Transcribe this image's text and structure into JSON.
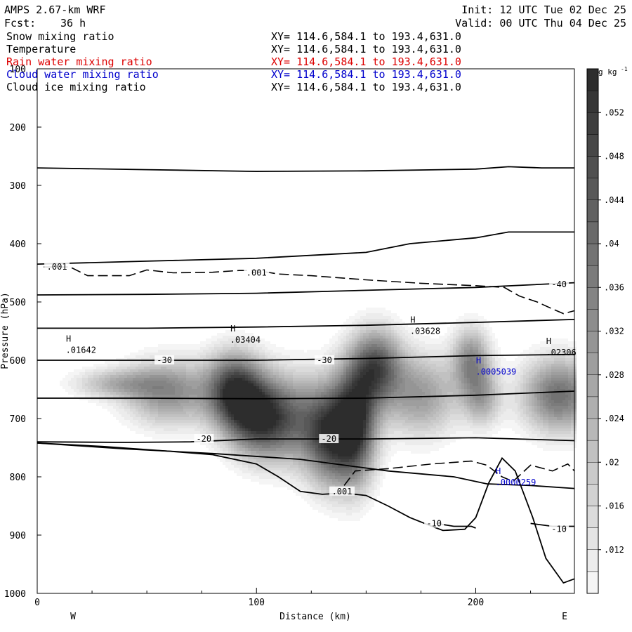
{
  "header": {
    "model": "AMPS 2.67-km WRF",
    "init": "Init: 12 UTC Tue 02 Dec 25",
    "fcst_label": "Fcst:",
    "fcst_value": "36 h",
    "valid": "Valid: 00 UTC Thu 04 Dec 25"
  },
  "legend_rows": [
    {
      "label": "Snow mixing ratio",
      "xy": "XY= 114.6,584.1 to 193.4,631.0",
      "color": "#000000"
    },
    {
      "label": "Temperature",
      "xy": "XY= 114.6,584.1 to 193.4,631.0",
      "color": "#000000"
    },
    {
      "label": "Rain water mixing ratio",
      "xy": "XY= 114.6,584.1 to 193.4,631.0",
      "color": "#dd0000"
    },
    {
      "label": "Cloud water mixing ratio",
      "xy": "XY= 114.6,584.1 to 193.4,631.0",
      "color": "#0000cc"
    },
    {
      "label": "Cloud ice mixing ratio",
      "xy": "XY= 114.6,584.1 to 193.4,631.0",
      "color": "#000000"
    }
  ],
  "chart_data": {
    "type": "cross-section contour",
    "title": "AMPS 2.67-km WRF",
    "xlabel": "Distance (km)",
    "ylabel": "Pressure (hPa)",
    "xlim": [
      0,
      245
    ],
    "ylim": [
      1000,
      100
    ],
    "x_ticks": [
      0,
      100,
      200
    ],
    "y_ticks": [
      100,
      200,
      300,
      400,
      500,
      600,
      700,
      800,
      900,
      1000
    ],
    "x_end_labels": {
      "left": "W",
      "right": "E"
    },
    "colorbar": {
      "unit": "g kg",
      "unit_exp": "-1",
      "tick_labels": [
        ".052",
        ".048",
        ".044",
        ".04",
        ".036",
        ".032",
        ".028",
        ".024",
        ".02",
        ".016",
        ".012"
      ],
      "tick_values": [
        0.052,
        0.048,
        0.044,
        0.04,
        0.036,
        0.032,
        0.028,
        0.024,
        0.02,
        0.016,
        0.012
      ],
      "range": [
        0.008,
        0.056
      ],
      "levels": [
        0.008,
        0.01,
        0.012,
        0.014,
        0.016,
        0.018,
        0.02,
        0.022,
        0.024,
        0.026,
        0.028,
        0.03,
        0.032,
        0.034,
        0.036,
        0.038,
        0.04,
        0.042,
        0.044,
        0.046,
        0.048,
        0.05,
        0.052,
        0.054,
        0.056
      ]
    },
    "shading_field": "Snow mixing ratio (g kg-1)",
    "shading_blobs": [
      {
        "x": 36,
        "p": 640,
        "sx": 14,
        "sp": 18,
        "amp": 0.35
      },
      {
        "x": 60,
        "p": 655,
        "sx": 14,
        "sp": 40,
        "amp": 0.55
      },
      {
        "x": 90,
        "p": 650,
        "sx": 9,
        "sp": 45,
        "amp": 0.85
      },
      {
        "x": 100,
        "p": 700,
        "sx": 10,
        "sp": 45,
        "amp": 0.7
      },
      {
        "x": 115,
        "p": 700,
        "sx": 12,
        "sp": 55,
        "amp": 0.55
      },
      {
        "x": 133,
        "p": 730,
        "sx": 8,
        "sp": 60,
        "amp": 0.75
      },
      {
        "x": 145,
        "p": 710,
        "sx": 7,
        "sp": 70,
        "amp": 0.95
      },
      {
        "x": 155,
        "p": 610,
        "sx": 8,
        "sp": 45,
        "amp": 0.75
      },
      {
        "x": 175,
        "p": 660,
        "sx": 12,
        "sp": 50,
        "amp": 0.5
      },
      {
        "x": 198,
        "p": 600,
        "sx": 6,
        "sp": 40,
        "amp": 0.55
      },
      {
        "x": 203,
        "p": 665,
        "sx": 6,
        "sp": 35,
        "amp": 0.4
      },
      {
        "x": 238,
        "p": 660,
        "sx": 12,
        "sp": 45,
        "amp": 0.7
      }
    ],
    "isotherms": [
      {
        "label": "-10",
        "label_at": [
          {
            "x": 181,
            "p": 880
          },
          {
            "x": 238,
            "p": 890
          }
        ],
        "points": [
          [
            182,
            880
          ],
          [
            190,
            885
          ],
          [
            198,
            885
          ],
          [
            200,
            888
          ]
        ],
        "points2": [
          [
            225,
            880
          ],
          [
            235,
            885
          ],
          [
            245,
            885
          ]
        ]
      },
      {
        "label": "-20",
        "label_at": [
          {
            "x": 76,
            "p": 735
          },
          {
            "x": 133,
            "p": 735
          }
        ],
        "points": [
          [
            0,
            740
          ],
          [
            40,
            741
          ],
          [
            70,
            740
          ],
          [
            100,
            735
          ],
          [
            150,
            735
          ],
          [
            200,
            733
          ],
          [
            245,
            738
          ]
        ]
      },
      {
        "label": "-30",
        "label_at": [
          {
            "x": 58,
            "p": 600
          },
          {
            "x": 131,
            "p": 600
          }
        ],
        "points": [
          [
            0,
            600
          ],
          [
            50,
            600
          ],
          [
            100,
            600
          ],
          [
            150,
            597
          ],
          [
            200,
            592
          ],
          [
            245,
            590
          ]
        ]
      },
      {
        "label": "-40",
        "label_at": [
          {
            "x": 238,
            "p": 470
          }
        ],
        "points": [
          [
            0,
            488
          ],
          [
            50,
            487
          ],
          [
            100,
            485
          ],
          [
            150,
            480
          ],
          [
            200,
            475
          ],
          [
            245,
            467
          ]
        ]
      },
      {
        "label": "",
        "label_at": [],
        "points": [
          [
            0,
            665
          ],
          [
            50,
            665
          ],
          [
            100,
            666
          ],
          [
            150,
            665
          ],
          [
            200,
            660
          ],
          [
            245,
            653
          ]
        ]
      },
      {
        "label": "",
        "label_at": [],
        "points": [
          [
            0,
            545
          ],
          [
            50,
            545
          ],
          [
            100,
            543
          ],
          [
            150,
            540
          ],
          [
            200,
            535
          ],
          [
            245,
            530
          ]
        ]
      },
      {
        "label": "",
        "label_at": [],
        "points": [
          [
            0,
            435
          ],
          [
            50,
            430
          ],
          [
            100,
            425
          ],
          [
            150,
            415
          ],
          [
            170,
            400
          ],
          [
            200,
            390
          ],
          [
            215,
            380
          ],
          [
            245,
            380
          ]
        ]
      },
      {
        "label": "",
        "label_at": [],
        "points": [
          [
            0,
            270
          ],
          [
            50,
            273
          ],
          [
            100,
            276
          ],
          [
            150,
            275
          ],
          [
            200,
            272
          ],
          [
            215,
            268
          ],
          [
            230,
            270
          ],
          [
            245,
            270
          ]
        ]
      },
      {
        "label": "",
        "label_at": [],
        "points": [
          [
            0,
            742
          ],
          [
            40,
            752
          ],
          [
            80,
            760
          ],
          [
            120,
            770
          ],
          [
            140,
            780
          ],
          [
            160,
            790
          ],
          [
            190,
            800
          ],
          [
            205,
            812
          ],
          [
            225,
            815
          ],
          [
            245,
            820
          ]
        ]
      }
    ],
    "dashed_contours": [
      {
        "label": ".001",
        "label_at": [
          {
            "x": 9,
            "p": 440
          },
          {
            "x": 100,
            "p": 450
          }
        ],
        "points": [
          [
            3,
            440
          ],
          [
            15,
            440
          ],
          [
            23,
            455
          ],
          [
            42,
            455
          ],
          [
            50,
            445
          ],
          [
            62,
            450
          ],
          [
            80,
            449
          ],
          [
            92,
            446
          ],
          [
            100,
            446
          ],
          [
            110,
            452
          ],
          [
            125,
            455
          ],
          [
            150,
            462
          ],
          [
            175,
            468
          ],
          [
            200,
            472
          ],
          [
            213,
            475
          ],
          [
            220,
            490
          ],
          [
            228,
            500
          ],
          [
            235,
            512
          ],
          [
            240,
            520
          ],
          [
            245,
            515
          ]
        ]
      },
      {
        "label": ".001",
        "label_at": [
          {
            "x": 139,
            "p": 825
          }
        ],
        "points": [
          [
            140,
            815
          ],
          [
            145,
            790
          ],
          [
            160,
            786
          ],
          [
            180,
            778
          ],
          [
            198,
            773
          ],
          [
            205,
            780
          ],
          [
            212,
            800
          ],
          [
            217,
            808
          ],
          [
            225,
            780
          ],
          [
            235,
            790
          ],
          [
            242,
            778
          ],
          [
            245,
            790
          ]
        ]
      }
    ],
    "extrema": [
      {
        "mark": "H",
        "value": ".01642",
        "x": 13,
        "p": 578,
        "color": "#000000"
      },
      {
        "mark": "H",
        "value": ".03404",
        "x": 88,
        "p": 560,
        "color": "#000000"
      },
      {
        "mark": "H",
        "value": ".03628",
        "x": 170,
        "p": 545,
        "color": "#000000"
      },
      {
        "mark": "H",
        "value": ".02306",
        "x": 232,
        "p": 582,
        "color": "#000000"
      },
      {
        "mark": "H",
        "value": ".0005039",
        "x": 200,
        "p": 615,
        "color": "#0000cc"
      },
      {
        "mark": "H",
        "value": ".0000259",
        "x": 209,
        "p": 805,
        "color": "#0000cc"
      }
    ],
    "terrain": {
      "description": "surface pressure along the cross-section",
      "points": [
        [
          0,
          742
        ],
        [
          30,
          748
        ],
        [
          60,
          756
        ],
        [
          80,
          762
        ],
        [
          100,
          778
        ],
        [
          110,
          800
        ],
        [
          120,
          825
        ],
        [
          130,
          830
        ],
        [
          140,
          828
        ],
        [
          150,
          832
        ],
        [
          160,
          850
        ],
        [
          170,
          870
        ],
        [
          180,
          885
        ],
        [
          185,
          892
        ],
        [
          195,
          890
        ],
        [
          200,
          870
        ],
        [
          206,
          810
        ],
        [
          212,
          768
        ],
        [
          218,
          790
        ],
        [
          226,
          870
        ],
        [
          232,
          940
        ],
        [
          240,
          982
        ],
        [
          245,
          975
        ]
      ]
    }
  }
}
